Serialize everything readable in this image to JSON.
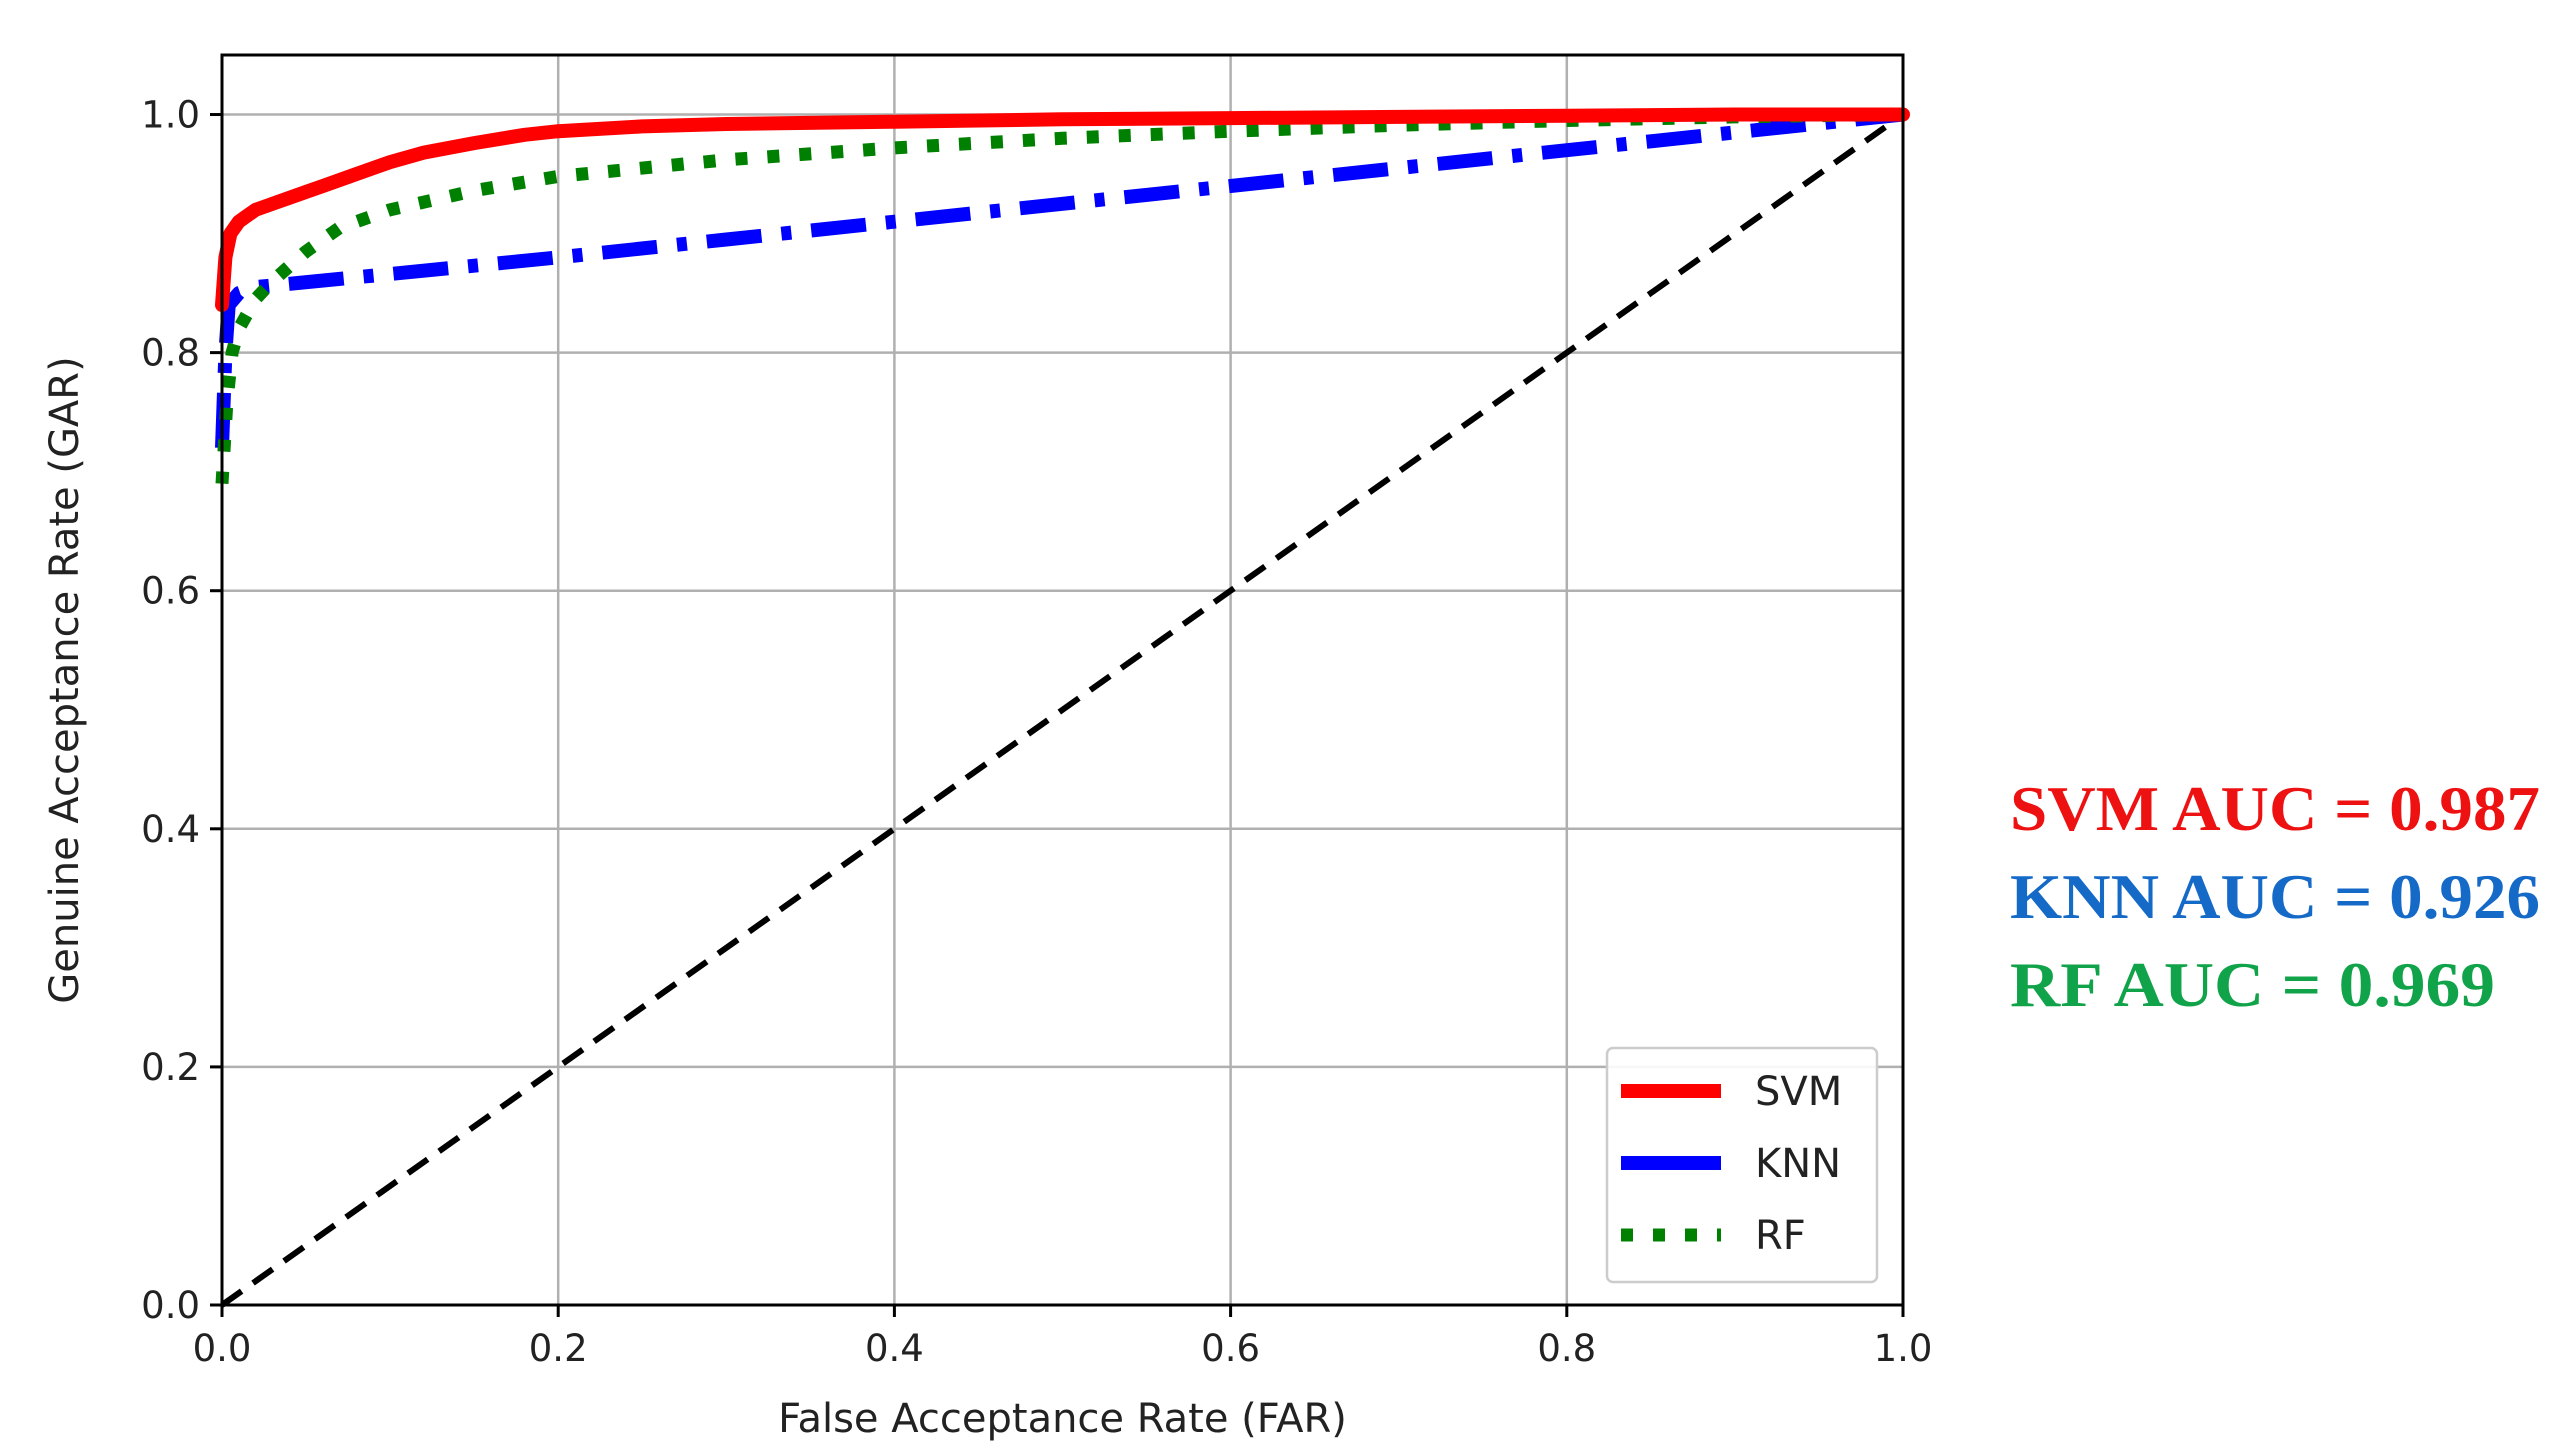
{
  "chart_data": {
    "type": "line",
    "xlabel": "False Acceptance Rate (FAR)",
    "ylabel": "Genuine Acceptance Rate (GAR)",
    "xlim": [
      0.0,
      1.0
    ],
    "ylim": [
      0.0,
      1.05
    ],
    "xticks": [
      "0.0",
      "0.2",
      "0.4",
      "0.6",
      "0.8",
      "1.0"
    ],
    "yticks": [
      "0.0",
      "0.2",
      "0.4",
      "0.6",
      "0.8",
      "1.0"
    ],
    "grid": true,
    "legend_position": "lower-right",
    "series": [
      {
        "name": "SVM",
        "color": "#ff0000",
        "style": "solid",
        "x": [
          0.0,
          0.002,
          0.005,
          0.01,
          0.015,
          0.02,
          0.03,
          0.04,
          0.05,
          0.06,
          0.07,
          0.08,
          0.1,
          0.12,
          0.15,
          0.18,
          0.2,
          0.25,
          0.3,
          0.4,
          0.5,
          0.6,
          0.7,
          0.8,
          0.9,
          1.0
        ],
        "y": [
          0.84,
          0.88,
          0.9,
          0.91,
          0.915,
          0.92,
          0.925,
          0.93,
          0.935,
          0.94,
          0.945,
          0.95,
          0.96,
          0.968,
          0.976,
          0.983,
          0.986,
          0.99,
          0.992,
          0.994,
          0.996,
          0.997,
          0.998,
          0.999,
          1.0,
          1.0
        ]
      },
      {
        "name": "KNN",
        "color": "#0000ff",
        "style": "dashdot",
        "x": [
          0.0,
          0.002,
          0.004,
          0.01,
          0.02,
          0.1,
          0.2,
          0.3,
          0.4,
          0.5,
          0.6,
          0.7,
          0.8,
          0.9,
          1.0
        ],
        "y": [
          0.72,
          0.8,
          0.84,
          0.85,
          0.855,
          0.866,
          0.88,
          0.895,
          0.91,
          0.925,
          0.94,
          0.955,
          0.97,
          0.985,
          1.0
        ]
      },
      {
        "name": "RF",
        "color": "#008000",
        "style": "dotted",
        "x": [
          0.0,
          0.003,
          0.006,
          0.01,
          0.02,
          0.03,
          0.05,
          0.07,
          0.1,
          0.15,
          0.2,
          0.3,
          0.4,
          0.5,
          0.6,
          0.7,
          0.8,
          0.9,
          1.0
        ],
        "y": [
          0.69,
          0.76,
          0.8,
          0.82,
          0.845,
          0.86,
          0.885,
          0.905,
          0.92,
          0.936,
          0.948,
          0.962,
          0.972,
          0.98,
          0.986,
          0.991,
          0.995,
          0.998,
          1.0
        ]
      }
    ],
    "reference_line": {
      "x": [
        0.0,
        1.0
      ],
      "y": [
        0.0,
        1.0
      ],
      "color": "#000000",
      "style": "dashed"
    },
    "annotations": [
      {
        "text": "SVM AUC = 0.987",
        "color": "#ee1111"
      },
      {
        "text": "KNN AUC = 0.926",
        "color": "#1569c7"
      },
      {
        "text": "RF AUC = 0.969",
        "color": "#11a34a"
      }
    ]
  }
}
